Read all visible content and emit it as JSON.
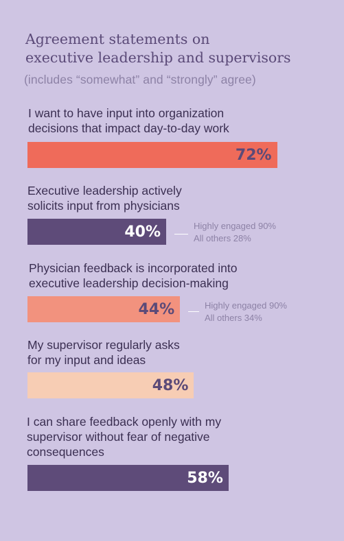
{
  "chart_data": {
    "type": "bar",
    "title_lines": [
      "Agreement statements on",
      "executive leadership and supervisors"
    ],
    "subtitle": "(includes “somewhat” and “strongly” agree)",
    "xlim": [
      0,
      100
    ],
    "colors": [
      "#ef6b5a",
      "#5e4b79",
      "#f2927e",
      "#f7cdb4",
      "#5e4b79"
    ],
    "value_colors": [
      "#5b4a78",
      "#ffffff",
      "#5b4a78",
      "#5b4a78",
      "#ffffff"
    ],
    "items": [
      {
        "lines": [
          "I want to have input into organization",
          "decisions that impact day-to-day work"
        ],
        "value": 72,
        "label": "72%",
        "notes": []
      },
      {
        "lines": [
          "Executive leadership actively",
          "solicits input from physicians"
        ],
        "value": 40,
        "label": "40%",
        "notes": [
          "Highly engaged 90%",
          "All others 28%"
        ]
      },
      {
        "lines": [
          "Physician feedback is incorporated into",
          "executive leadership decision-making"
        ],
        "value": 44,
        "label": "44%",
        "notes": [
          "Highly engaged 90%",
          "All others 34%"
        ]
      },
      {
        "lines": [
          "My supervisor regularly asks",
          "for my input and ideas"
        ],
        "value": 48,
        "label": "48%",
        "notes": []
      },
      {
        "lines": [
          "I can share feedback openly with my",
          "supervisor without fear of negative",
          "consequences"
        ],
        "value": 58,
        "label": "58%",
        "notes": []
      }
    ]
  }
}
